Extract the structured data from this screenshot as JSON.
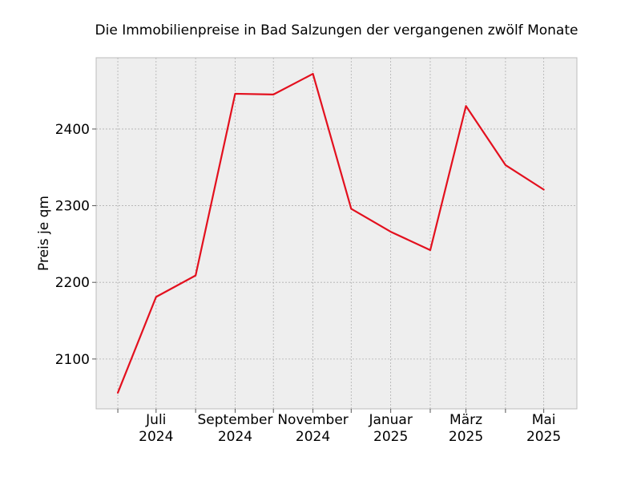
{
  "chart_data": {
    "type": "line",
    "title": "Die Immobilienpreise in Bad Salzungen der vergangenen zwölf Monate",
    "xlabel": "",
    "ylabel": "Preis je qm",
    "x": [
      "2024-06",
      "2024-07",
      "2024-08",
      "2024-09",
      "2024-10",
      "2024-11",
      "2024-12",
      "2025-01",
      "2025-02",
      "2025-03",
      "2025-04",
      "2025-05"
    ],
    "series": [
      {
        "values": [
          2056,
          2181,
          2209,
          2446,
          2445,
          2472,
          2296,
          2266,
          2242,
          2430,
          2353,
          2321
        ],
        "color": "#e3101e"
      }
    ],
    "x_tick_labels": [
      {
        "month": "2024-07",
        "line1": "Juli",
        "line2": "2024"
      },
      {
        "month": "2024-09",
        "line1": "September",
        "line2": "2024"
      },
      {
        "month": "2024-11",
        "line1": "November",
        "line2": "2024"
      },
      {
        "month": "2025-01",
        "line1": "Januar",
        "line2": "2025"
      },
      {
        "month": "2025-03",
        "line1": "März",
        "line2": "2025"
      },
      {
        "month": "2025-05",
        "line1": "Mai",
        "line2": "2025"
      }
    ],
    "xlim": [
      "2024-05-15",
      "2025-05-27"
    ],
    "ylim": [
      2035,
      2493
    ],
    "yticks": [
      2100,
      2200,
      2300,
      2400
    ],
    "grid": true,
    "background_color": "#eeeeee"
  }
}
